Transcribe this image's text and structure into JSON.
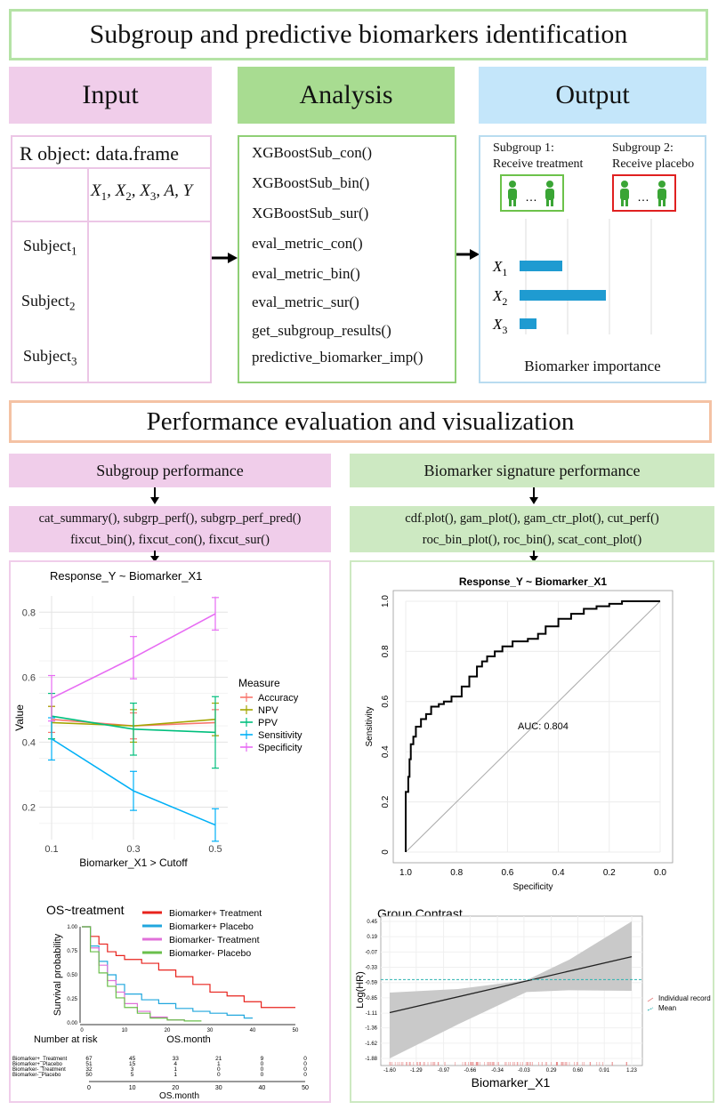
{
  "title": "Subgroup and predictive biomarkers identification",
  "headers": {
    "input": "Input",
    "analysis": "Analysis",
    "output": "Output"
  },
  "input": {
    "object_label": "R object: data.frame",
    "columns": "X",
    "col_x1": "X",
    "col_x2": "X",
    "col_x3": "X",
    "col_a": "A",
    "col_y": "Y",
    "sub1": "1",
    "sub2": "2",
    "sub3": "3",
    "subjects": [
      "Subject",
      "Subject",
      "Subject"
    ]
  },
  "analysis": {
    "functions": [
      "XGBoostSub_con()",
      "XGBoostSub_bin()",
      "XGBoostSub_sur()",
      "eval_metric_con()",
      "eval_metric_bin()",
      "eval_metric_sur()",
      "get_subgroup_results()",
      "predictive_biomarker_imp()"
    ]
  },
  "output": {
    "subgroup1_line1": "Subgroup 1:",
    "subgroup1_line2": "Receive treatment",
    "subgroup2_line1": "Subgroup 2:",
    "subgroup2_line2": "Receive placebo",
    "ellipsis": "…",
    "bars": [
      {
        "label": "X",
        "sub": "1",
        "value": 0.48
      },
      {
        "label": "X",
        "sub": "2",
        "value": 0.97
      },
      {
        "label": "X",
        "sub": "3",
        "value": 0.19
      }
    ],
    "caption": "Biomarker importance",
    "bar_color": "#1f9bd1"
  },
  "perf_title": "Performance evaluation and visualization",
  "subgroup_perf": {
    "header": "Subgroup performance",
    "fn_line1": "cat_summary(), subgrp_perf(), subgrp_perf_pred()",
    "fn_line2": "fixcut_bin(), fixcut_con(), fixcut_sur()"
  },
  "biomarker_perf": {
    "header": "Biomarker signature performance",
    "fn_line1": "cdf.plot(), gam_plot(), gam_ctr_plot(), cut_perf()",
    "fn_line2": "roc_bin_plot(), roc_bin(), scat_cont_plot()"
  },
  "chart_data": [
    {
      "type": "line",
      "title": "Response_Y ~ Biomarker_X1",
      "xlabel": "Biomarker_X1 > Cutoff",
      "ylabel": "Value",
      "x": [
        0.1,
        0.3,
        0.5
      ],
      "xticks": [
        "0.1",
        "0.3",
        "0.5"
      ],
      "yticks": [
        "0.2",
        "0.4",
        "0.6",
        "0.8"
      ],
      "ylim": [
        0.1,
        0.85
      ],
      "legend_title": "Measure",
      "series": [
        {
          "name": "Accuracy",
          "color": "#f8766d",
          "values": [
            0.47,
            0.45,
            0.46
          ],
          "err": [
            0.04,
            0.04,
            0.04
          ]
        },
        {
          "name": "NPV",
          "color": "#a3a500",
          "values": [
            0.46,
            0.45,
            0.47
          ],
          "err": [
            0.05,
            0.05,
            0.05
          ]
        },
        {
          "name": "PPV",
          "color": "#00bf7d",
          "values": [
            0.48,
            0.44,
            0.43
          ],
          "err": [
            0.07,
            0.08,
            0.11
          ]
        },
        {
          "name": "Sensitivity",
          "color": "#00b0f6",
          "values": [
            0.41,
            0.25,
            0.145
          ],
          "err": [
            0.065,
            0.06,
            0.05
          ]
        },
        {
          "name": "Specificity",
          "color": "#e76bf3",
          "values": [
            0.535,
            0.66,
            0.795
          ],
          "err": [
            0.07,
            0.065,
            0.05
          ]
        }
      ]
    },
    {
      "type": "line",
      "title": "Response_Y ~ Biomarker_X1",
      "xlabel": "Specificity",
      "ylabel": "Sensitivity",
      "xticks": [
        "1.0",
        "0.8",
        "0.6",
        "0.4",
        "0.2",
        "0.0"
      ],
      "yticks": [
        "0",
        "0.2",
        "0.4",
        "0.6",
        "0.8",
        "1.0"
      ],
      "annotation": "AUC: 0.804",
      "roc": {
        "specificity": [
          1.0,
          1.0,
          0.99,
          0.985,
          0.98,
          0.97,
          0.96,
          0.94,
          0.92,
          0.9,
          0.87,
          0.85,
          0.82,
          0.78,
          0.75,
          0.72,
          0.7,
          0.68,
          0.65,
          0.62,
          0.58,
          0.55,
          0.52,
          0.48,
          0.45,
          0.4,
          0.35,
          0.3,
          0.25,
          0.2,
          0.15,
          0.1,
          0.05,
          0.0
        ],
        "sensitivity": [
          0.0,
          0.14,
          0.24,
          0.3,
          0.37,
          0.43,
          0.46,
          0.5,
          0.53,
          0.55,
          0.58,
          0.59,
          0.6,
          0.62,
          0.66,
          0.7,
          0.74,
          0.76,
          0.78,
          0.8,
          0.82,
          0.84,
          0.84,
          0.85,
          0.87,
          0.9,
          0.93,
          0.95,
          0.97,
          0.98,
          0.99,
          1.0,
          1.0,
          1.0
        ]
      }
    },
    {
      "type": "line",
      "title": "OS~treatment",
      "xlabel": "OS.month",
      "ylabel": "Survival probability",
      "xticks": [
        "0",
        "10",
        "20",
        "30",
        "40",
        "50"
      ],
      "yticks": [
        "0.00",
        "0.25",
        "0.50",
        "0.75",
        "1.00"
      ],
      "series": [
        {
          "name": "Biomarker+ Treatment",
          "color": "#e8231d",
          "x": [
            0,
            2,
            4,
            6,
            8,
            10,
            14,
            18,
            22,
            26,
            30,
            34,
            38,
            42,
            46,
            50
          ],
          "y": [
            1.0,
            0.9,
            0.82,
            0.74,
            0.7,
            0.66,
            0.62,
            0.55,
            0.48,
            0.4,
            0.32,
            0.28,
            0.22,
            0.16,
            0.16,
            0.16
          ]
        },
        {
          "name": "Biomarker+ Placebo",
          "color": "#21a7de",
          "x": [
            0,
            2,
            4,
            6,
            8,
            10,
            14,
            18,
            22,
            26,
            30,
            34,
            38,
            40
          ],
          "y": [
            1.0,
            0.8,
            0.64,
            0.5,
            0.4,
            0.3,
            0.24,
            0.2,
            0.15,
            0.12,
            0.1,
            0.08,
            0.05,
            0.05
          ]
        },
        {
          "name": "Biomarker- Treatment",
          "color": "#e071d9",
          "x": [
            0,
            2,
            4,
            6,
            8,
            10,
            13,
            16,
            20,
            24
          ],
          "y": [
            1.0,
            0.78,
            0.6,
            0.44,
            0.32,
            0.2,
            0.12,
            0.06,
            0.03,
            0.02
          ]
        },
        {
          "name": "Biomarker- Placebo",
          "color": "#6abf4b",
          "x": [
            0,
            2,
            4,
            6,
            8,
            10,
            13,
            16,
            20,
            24,
            28
          ],
          "y": [
            1.0,
            0.74,
            0.52,
            0.38,
            0.26,
            0.16,
            0.1,
            0.05,
            0.03,
            0.02,
            0.02
          ]
        }
      ],
      "risk_table": {
        "header": "Number at risk",
        "xlabel": "OS.month",
        "rows": [
          {
            "name": "Biomarker+_Treatment",
            "values": [
              "67",
              "45",
              "33",
              "21",
              "9",
              "0"
            ]
          },
          {
            "name": "Biomarker+_Placebo",
            "values": [
              "51",
              "15",
              "4",
              "1",
              "0",
              "0"
            ]
          },
          {
            "name": "Biomarker-_Treatment",
            "values": [
              "32",
              "3",
              "1",
              "0",
              "0",
              "0"
            ]
          },
          {
            "name": "Biomarker-_Placebo",
            "values": [
              "50",
              "5",
              "1",
              "0",
              "0",
              "0"
            ]
          }
        ]
      }
    },
    {
      "type": "line",
      "title": "Group Contrast",
      "xlabel": "Biomarker_X1",
      "ylabel": "Log(HR)",
      "xticks": [
        "-1.60",
        "-1.29",
        "-0.97",
        "-0.66",
        "-0.34",
        "-0.03",
        "0.29",
        "0.60",
        "0.91",
        "1.23"
      ],
      "yticks": [
        "0.45",
        "0.19",
        "-0.07",
        "-0.33",
        "-0.59",
        "-0.85",
        "-1.11",
        "-1.36",
        "-1.62",
        "-1.88"
      ],
      "fit": {
        "x": [
          -1.6,
          1.23
        ],
        "y": [
          -1.1,
          -0.15
        ]
      },
      "band_upper": {
        "x": [
          -1.6,
          -0.8,
          0.0,
          0.5,
          1.23
        ],
        "y": [
          -0.76,
          -0.7,
          -0.55,
          -0.2,
          0.45
        ]
      },
      "band_lower": {
        "x": [
          -1.6,
          -0.8,
          0.0,
          0.5,
          1.23
        ],
        "y": [
          -1.88,
          -1.3,
          -0.75,
          -0.72,
          -0.73
        ]
      },
      "mean": -0.54,
      "legend": [
        "Individual record",
        "Mean"
      ]
    }
  ]
}
